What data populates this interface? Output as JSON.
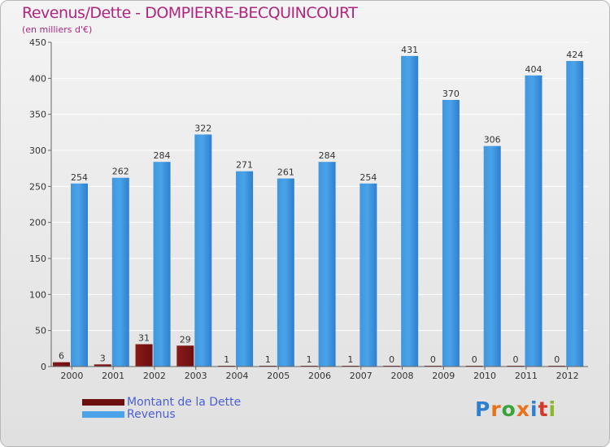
{
  "title": "Revenus/Dette - DOMPIERRE-BECQUINCOURT",
  "subtitle": "(en milliers d'€)",
  "legend": {
    "debt_label": "Montant de la Dette",
    "revenue_label": "Revenus"
  },
  "logo": {
    "text": "Proxiti"
  },
  "colors": {
    "debt": "#6b0f0f",
    "revenue": "#4aa3e8",
    "title": "#b0267f"
  },
  "chart_data": {
    "type": "bar",
    "title": "Revenus/Dette - DOMPIERRE-BECQUINCOURT",
    "ylabel": "(en milliers d'€)",
    "ylim": [
      0,
      450
    ],
    "yticks": [
      0,
      50,
      100,
      150,
      200,
      250,
      300,
      350,
      400,
      450
    ],
    "categories": [
      "2000",
      "2001",
      "2002",
      "2003",
      "2004",
      "2005",
      "2006",
      "2007",
      "2008",
      "2009",
      "2010",
      "2011",
      "2012"
    ],
    "series": [
      {
        "name": "Montant de la Dette",
        "values": [
          6,
          3,
          31,
          29,
          1,
          1,
          1,
          1,
          0,
          0,
          0,
          0,
          0
        ]
      },
      {
        "name": "Revenus",
        "values": [
          254,
          262,
          284,
          322,
          271,
          261,
          284,
          254,
          431,
          370,
          306,
          404,
          424
        ]
      }
    ],
    "legend_position": "bottom-left"
  }
}
